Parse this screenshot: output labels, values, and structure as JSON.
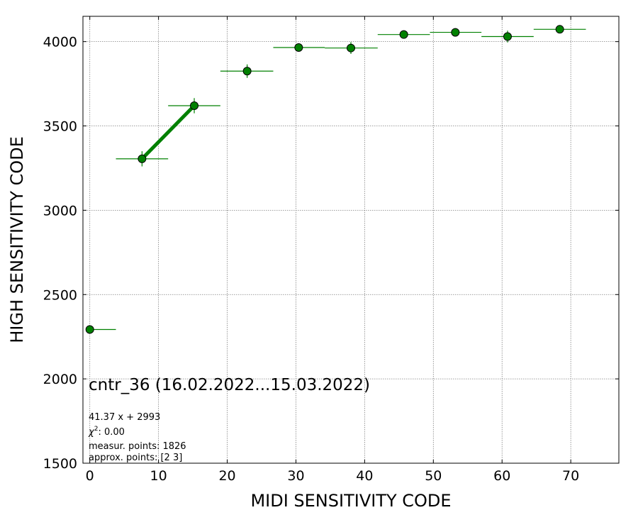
{
  "chart_data": {
    "type": "scatter",
    "xlabel": "MIDI SENSITIVITY CODE",
    "ylabel": "HIGH SENSITIVITY CODE",
    "xlim": [
      -1,
      77
    ],
    "ylim": [
      1500,
      4150
    ],
    "xticks": [
      0,
      10,
      20,
      30,
      40,
      50,
      60,
      70
    ],
    "yticks": [
      1500,
      2000,
      2500,
      3000,
      3500,
      4000
    ],
    "grid": true,
    "series": [
      {
        "points": [
          {
            "x": 0.0,
            "y": 2293,
            "xlo": 0.0,
            "xhi": 3.8,
            "yerr": 0
          },
          {
            "x": 7.6,
            "y": 3305,
            "xlo": 3.8,
            "xhi": 11.4,
            "yerr": 45
          },
          {
            "x": 15.2,
            "y": 3620,
            "xlo": 11.4,
            "xhi": 19.0,
            "yerr": 45
          },
          {
            "x": 22.9,
            "y": 3825,
            "xlo": 19.0,
            "xhi": 26.7,
            "yerr": 40
          },
          {
            "x": 30.4,
            "y": 3965,
            "xlo": 26.7,
            "xhi": 34.2,
            "yerr": 25
          },
          {
            "x": 38.0,
            "y": 3962,
            "xlo": 34.2,
            "xhi": 41.9,
            "yerr": 35
          },
          {
            "x": 45.7,
            "y": 4042,
            "xlo": 41.9,
            "xhi": 49.5,
            "yerr": 15
          },
          {
            "x": 53.2,
            "y": 4055,
            "xlo": 49.5,
            "xhi": 57.0,
            "yerr": 15
          },
          {
            "x": 60.8,
            "y": 4030,
            "xlo": 57.0,
            "xhi": 64.6,
            "yerr": 35
          },
          {
            "x": 68.4,
            "y": 4073,
            "xlo": 64.6,
            "xhi": 72.2,
            "yerr": 15
          }
        ]
      }
    ],
    "fit_line": {
      "x": [
        7.6,
        15.2
      ],
      "y": [
        3305,
        3620
      ]
    },
    "annotations": {
      "title": "cntr_36 (16.02.2022...15.03.2022)",
      "fit": "41.37 x + 2993",
      "chi_prefix": "χ",
      "chi_sup": "2",
      "chi_value": ": 0.00",
      "measur": "measur. points: 1826",
      "approx": "approx. points: [2 3]"
    },
    "colors": {
      "marker_fill": "#008000",
      "marker_edge": "#000000",
      "errorbar": "#008000",
      "fit_line": "#008000",
      "grid": "#808080"
    }
  }
}
